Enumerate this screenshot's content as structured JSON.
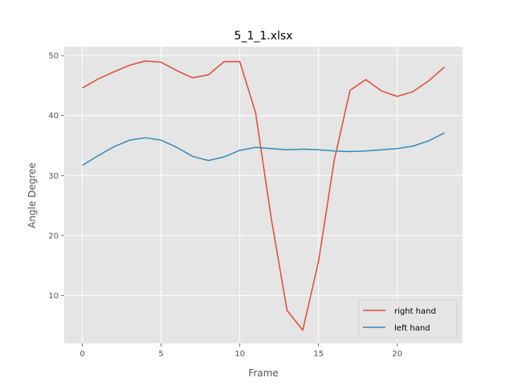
{
  "chart_data": {
    "type": "line",
    "title": "5_1_1.xlsx",
    "xlabel": "Frame",
    "ylabel": "Angle Degree",
    "xlim": [
      -1.15,
      24.15
    ],
    "ylim": [
      2.0,
      51.5
    ],
    "xticks": [
      0,
      5,
      10,
      15,
      20
    ],
    "yticks": [
      10,
      20,
      30,
      40,
      50
    ],
    "grid": true,
    "legend": "lower-right",
    "x": [
      0,
      1,
      2,
      3,
      4,
      5,
      6,
      7,
      8,
      9,
      10,
      11,
      12,
      13,
      14,
      15,
      16,
      17,
      18,
      19,
      20,
      21,
      22,
      23
    ],
    "series": [
      {
        "name": "right hand",
        "color": "#e24a33",
        "values": [
          44.6,
          46.1,
          47.3,
          48.4,
          49.1,
          48.9,
          47.5,
          46.3,
          46.8,
          49.0,
          49.0,
          40.5,
          22.8,
          7.5,
          4.2,
          15.7,
          32.6,
          44.2,
          46.0,
          44.1,
          43.2,
          44.0,
          45.8,
          48.1
        ]
      },
      {
        "name": "left hand",
        "color": "#348abd",
        "values": [
          31.7,
          33.3,
          34.8,
          35.9,
          36.3,
          35.9,
          34.7,
          33.2,
          32.5,
          33.1,
          34.2,
          34.7,
          34.5,
          34.3,
          34.4,
          34.3,
          34.1,
          34.0,
          34.1,
          34.3,
          34.5,
          34.9,
          35.8,
          37.1
        ]
      }
    ]
  }
}
